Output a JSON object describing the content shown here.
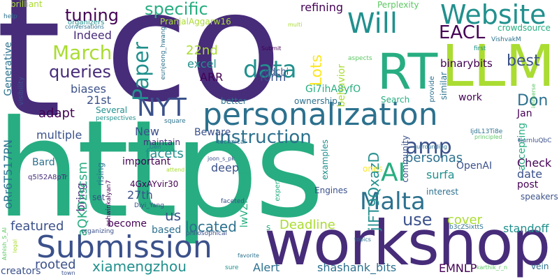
{
  "palette": {
    "c1": "#440154",
    "c2": "#472c7a",
    "c3": "#3b518b",
    "c4": "#2c718e",
    "c5": "#21908d",
    "c6": "#27ad81",
    "c7": "#5cc863",
    "c8": "#aadc32",
    "c9": "#fde725"
  },
  "words": [
    {
      "text": "co",
      "color": "#472c7a"
    },
    {
      "text": "https",
      "color": "#27ad81"
    },
    {
      "text": "t",
      "color": "#472c7a"
    },
    {
      "text": "workshop",
      "color": "#472c7a"
    },
    {
      "text": "RT",
      "color": "#27ad81"
    },
    {
      "text": "LLM",
      "color": "#aadc32"
    },
    {
      "text": "personalization",
      "color": "#2c718e"
    },
    {
      "text": "Submission",
      "color": "#3b518b"
    },
    {
      "text": "Website",
      "color": "#21908d"
    },
    {
      "text": "data",
      "color": "#21908d"
    },
    {
      "text": "Will",
      "color": "#21908d"
    },
    {
      "text": "EACL",
      "color": "#440154"
    },
    {
      "text": "AI",
      "color": "#27ad81"
    },
    {
      "text": "NYT",
      "color": "#3b518b"
    },
    {
      "text": "Malta",
      "color": "#2c718e"
    },
    {
      "text": "amp",
      "color": "#3b518b"
    },
    {
      "text": "instruction",
      "color": "#2c718e"
    },
    {
      "text": "Paper",
      "color": "#21908d"
    },
    {
      "text": "March",
      "color": "#aadc32"
    },
    {
      "text": "specific",
      "color": "#27ad81"
    },
    {
      "text": "tuning",
      "color": "#440154"
    },
    {
      "text": "queries",
      "color": "#472c7a"
    },
    {
      "text": "best",
      "color": "#3b518b"
    },
    {
      "text": "Lots",
      "color": "#fde725"
    },
    {
      "text": "Don",
      "color": "#2c718e"
    },
    {
      "text": "xiamengzhou",
      "color": "#21908d"
    },
    {
      "text": "jlFT9QxazD",
      "color": "#21908d"
    },
    {
      "text": "Deadline",
      "color": "#aadc32"
    },
    {
      "text": "use",
      "color": "#3b518b"
    },
    {
      "text": "located",
      "color": "#2c718e"
    },
    {
      "text": "personas",
      "color": "#2c718e"
    },
    {
      "text": "rooted",
      "color": "#3b518b"
    },
    {
      "text": "featured",
      "color": "#3b518b"
    },
    {
      "text": "shashank_bits",
      "color": "#2c718e"
    },
    {
      "text": "Alert",
      "color": "#2c718e"
    },
    {
      "text": "EMNLP",
      "color": "#440154"
    },
    {
      "text": "binarybits",
      "color": "#440154"
    },
    {
      "text": "refining",
      "color": "#440154"
    },
    {
      "text": "Indeed",
      "color": "#472c7a"
    },
    {
      "text": "adapt",
      "color": "#440154"
    },
    {
      "text": "biases",
      "color": "#3b518b"
    },
    {
      "text": "multiple",
      "color": "#3b518b"
    },
    {
      "text": "Generative",
      "color": "#2c718e"
    },
    {
      "text": "oRr6T517PN",
      "color": "#2c718e"
    },
    {
      "text": "22nd",
      "color": "#aadc32"
    },
    {
      "text": "excel",
      "color": "#21908d"
    },
    {
      "text": "form",
      "color": "#3b518b"
    },
    {
      "text": "ARR",
      "color": "#440154"
    },
    {
      "text": "edchi",
      "color": "#3b518b"
    },
    {
      "text": "Gi7ihA8yfO",
      "color": "#27ad81"
    },
    {
      "text": "work",
      "color": "#440154"
    },
    {
      "text": "Jan",
      "color": "#440154"
    },
    {
      "text": "21st",
      "color": "#3b518b"
    },
    {
      "text": "Several",
      "color": "#21908d"
    },
    {
      "text": "New",
      "color": "#3b518b"
    },
    {
      "text": "maintain",
      "color": "#472c7a"
    },
    {
      "text": "Beware",
      "color": "#3b518b"
    },
    {
      "text": "facets",
      "color": "#21908d"
    },
    {
      "text": "important",
      "color": "#440154"
    },
    {
      "text": "deep",
      "color": "#3b518b"
    },
    {
      "text": "4GxAYvir30",
      "color": "#440154"
    },
    {
      "text": "27th",
      "color": "#3b518b"
    },
    {
      "text": "bring",
      "color": "#472c7a"
    },
    {
      "text": "aQKDzscsm",
      "color": "#27ad81"
    },
    {
      "text": "become",
      "color": "#440154"
    },
    {
      "text": "based",
      "color": "#2c718e"
    },
    {
      "text": "us",
      "color": "#3b518b"
    },
    {
      "text": "cover",
      "color": "#aadc32"
    },
    {
      "text": "standoff",
      "color": "#21908d"
    },
    {
      "text": "OpenAI",
      "color": "#3b518b"
    },
    {
      "text": "Check",
      "color": "#440154"
    },
    {
      "text": "date",
      "color": "#3b518b"
    },
    {
      "text": "post",
      "color": "#440154"
    },
    {
      "text": "surfa",
      "color": "#21908d"
    },
    {
      "text": "Engines",
      "color": "#3b518b"
    },
    {
      "text": "Bard",
      "color": "#2c718e"
    },
    {
      "text": "set",
      "color": "#3b518b"
    },
    {
      "text": "rising",
      "color": "#2c718e"
    },
    {
      "text": "lwVZPDWSii",
      "color": "#27ad81"
    },
    {
      "text": "accepting",
      "color": "#27ad81"
    },
    {
      "text": "behavior",
      "color": "#aadc32"
    },
    {
      "text": "Perplexity",
      "color": "#5cc863"
    },
    {
      "text": "crowdsource",
      "color": "#27ad81"
    },
    {
      "text": "PranjalAggarw16",
      "color": "#aadc32"
    },
    {
      "text": "brilliant",
      "color": "#aadc32"
    },
    {
      "text": "ownership",
      "color": "#2c718e"
    },
    {
      "text": "Search",
      "color": "#27ad81"
    },
    {
      "text": "community",
      "color": "#3b518b"
    },
    {
      "text": "interest",
      "color": "#2c718e"
    },
    {
      "text": "speakers",
      "color": "#3b518b"
    },
    {
      "text": "examples",
      "color": "#21908d"
    },
    {
      "text": "expertise",
      "color": "#27ad81"
    },
    {
      "text": "ones",
      "color": "#fde725"
    },
    {
      "text": "organizers",
      "color": "#21908d"
    },
    {
      "text": "conversations",
      "color": "#2c718e"
    },
    {
      "text": "help",
      "color": "#2c718e"
    },
    {
      "text": "multi",
      "color": "#aadc32"
    },
    {
      "text": "eunjeong_hwang",
      "color": "#2c718e"
    },
    {
      "text": "Submit",
      "color": "#440154"
    },
    {
      "text": "VishvakM",
      "color": "#2c718e"
    },
    {
      "text": "aspects",
      "color": "#5cc863"
    },
    {
      "text": "first",
      "color": "#21908d"
    },
    {
      "text": "similar",
      "color": "#2c718e"
    },
    {
      "text": "provide",
      "color": "#2c718e"
    },
    {
      "text": "visibility",
      "color": "#3b518b"
    },
    {
      "text": "better",
      "color": "#2c718e"
    },
    {
      "text": "technical",
      "color": "#2c718e"
    },
    {
      "text": "square",
      "color": "#2c718e"
    },
    {
      "text": "perspectives",
      "color": "#21908d"
    },
    {
      "text": "Gen",
      "color": "#2c718e"
    },
    {
      "text": "joon_s_pk",
      "color": "#3b518b"
    },
    {
      "text": "q5l52A8pTr",
      "color": "#472c7a"
    },
    {
      "text": "ashwinkalyan7",
      "color": "#440154"
    },
    {
      "text": "Diyi_Yang",
      "color": "#3b518b"
    },
    {
      "text": "attend",
      "color": "#aadc32"
    },
    {
      "text": "faceted",
      "color": "#3b518b"
    },
    {
      "text": "organizing",
      "color": "#3b518b"
    },
    {
      "text": "philosophical",
      "color": "#3b518b"
    },
    {
      "text": "s",
      "color": "#27ad81"
    },
    {
      "text": "favorite",
      "color": "#2c718e"
    },
    {
      "text": "sure",
      "color": "#21908d"
    },
    {
      "text": "topics",
      "color": "#2c718e"
    },
    {
      "text": "b3cZSixttS",
      "color": "#2c718e"
    },
    {
      "text": "karthik_r_n",
      "color": "#5cc863"
    },
    {
      "text": "vein",
      "color": "#2c718e"
    },
    {
      "text": "creators",
      "color": "#3b518b"
    },
    {
      "text": "Ashish_S_AI",
      "color": "#5cc863"
    },
    {
      "text": "legal",
      "color": "#aadc32"
    },
    {
      "text": "town",
      "color": "#3b518b"
    },
    {
      "text": "IjdL13Ti8e",
      "color": "#2c718e"
    },
    {
      "text": "principled",
      "color": "#5cc863"
    },
    {
      "text": "surrounding",
      "color": "#2c718e"
    },
    {
      "text": "tIurnluQbC",
      "color": "#3b518b"
    },
    {
      "text": "immerse",
      "color": "#5cc863"
    }
  ]
}
